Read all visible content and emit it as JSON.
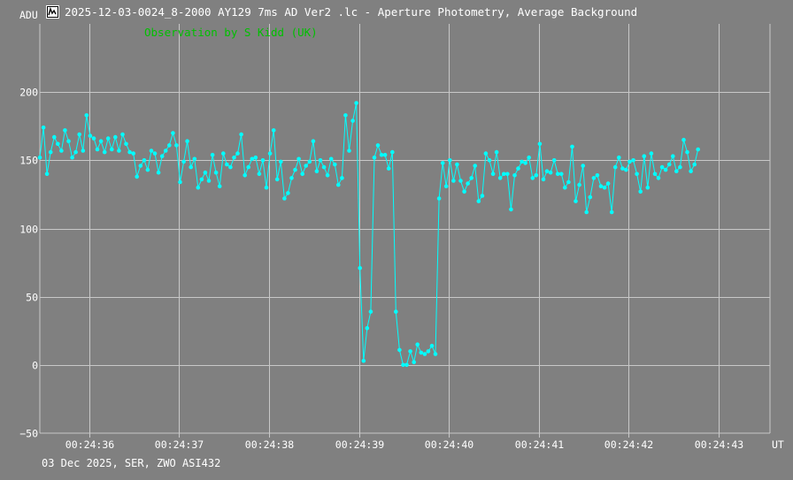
{
  "window": {
    "title": "2025-12-03-0024_8-2000 AY129 7ms AD Ver2 .lc - Aperture Photometry, Average Background",
    "icon": "lightcurve-app-icon"
  },
  "colors": {
    "background": "#808080",
    "grid": "#c8c8c8",
    "series": "#00ffff",
    "text": "#ffffff",
    "subtitle": "#00c000"
  },
  "chart_data": {
    "type": "line",
    "title": "2025-12-03-0024_8-2000 AY129 7ms AD Ver2 .lc - Aperture Photometry, Average Background",
    "subtitle": "Observation by S Kidd (UK)",
    "footer": "03 Dec 2025, SER, ZWO ASI432",
    "xlabel": "UT",
    "ylabel": "ADU",
    "xlim": [
      35.45,
      43.57
    ],
    "ylim": [
      -50,
      250
    ],
    "grid": true,
    "legend": "none",
    "x_ticks": [
      36,
      37,
      38,
      39,
      40,
      41,
      42,
      43
    ],
    "x_tick_labels": [
      "00:24:36",
      "00:24:37",
      "00:24:38",
      "00:24:39",
      "00:24:40",
      "00:24:41",
      "00:24:42",
      "00:24:43"
    ],
    "y_ticks": [
      -50,
      0,
      50,
      100,
      150,
      200
    ],
    "y_tick_labels": [
      "−50",
      "0",
      "50",
      "100",
      "150",
      "200"
    ],
    "series": [
      {
        "x_start": 35.45,
        "x_step": 0.04,
        "values": [
          152,
          174,
          140,
          156,
          167,
          162,
          157,
          172,
          164,
          152,
          156,
          169,
          157,
          183,
          168,
          166,
          158,
          164,
          156,
          166,
          158,
          167,
          157,
          169,
          162,
          156,
          155,
          138,
          146,
          150,
          143,
          157,
          155,
          141,
          153,
          157,
          161,
          170,
          161,
          134,
          149,
          164,
          145,
          151,
          130,
          136,
          141,
          135,
          154,
          141,
          131,
          155,
          147,
          145,
          152,
          155,
          169,
          139,
          145,
          151,
          152,
          140,
          150,
          130,
          155,
          172,
          136,
          149,
          122,
          126,
          137,
          143,
          151,
          140,
          146,
          149,
          164,
          142,
          150,
          145,
          139,
          151,
          147,
          132,
          137,
          183,
          157,
          179,
          192,
          71,
          3,
          27,
          39,
          152,
          161,
          154,
          154,
          144,
          156,
          39,
          11,
          0,
          0,
          10,
          2,
          15,
          9,
          8,
          10,
          14,
          8,
          122,
          148,
          131,
          150,
          135,
          147,
          135,
          127,
          133,
          137,
          146,
          120,
          124,
          155,
          150,
          140,
          156,
          137,
          140,
          140,
          114,
          139,
          144,
          149,
          148,
          152,
          137,
          139,
          162,
          136,
          142,
          141,
          150,
          140,
          140,
          130,
          134,
          160,
          120,
          132,
          146,
          112,
          123,
          137,
          139,
          131,
          130,
          133,
          112,
          145,
          152,
          144,
          143,
          149,
          150,
          140,
          127,
          153,
          130,
          155,
          140,
          137,
          145,
          143,
          147,
          153,
          142,
          145,
          165,
          156,
          142,
          147,
          158
        ]
      }
    ]
  }
}
